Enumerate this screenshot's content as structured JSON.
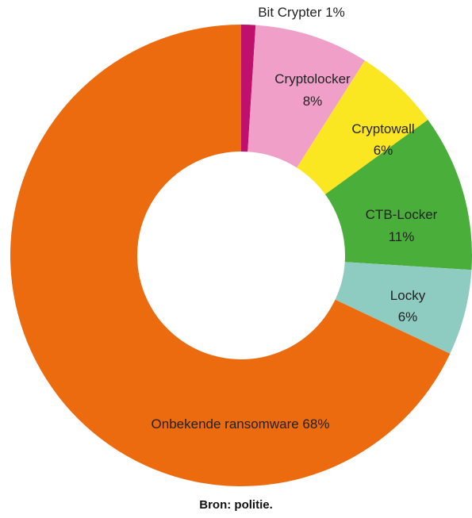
{
  "chart_data": {
    "type": "pie",
    "donut": true,
    "title": "",
    "slices": [
      {
        "label": "Bit Crypter",
        "value": 1,
        "display": "Bit Crypter 1%",
        "color": "#c0106e"
      },
      {
        "label": "Cryptolocker",
        "value": 8,
        "display": "8%",
        "color": "#f0a0c8"
      },
      {
        "label": "Cryptowall",
        "value": 6,
        "display": "6%",
        "color": "#fbe622"
      },
      {
        "label": "CTB-Locker",
        "value": 11,
        "display": "11%",
        "color": "#4aae3a"
      },
      {
        "label": "Locky",
        "value": 6,
        "display": "6%",
        "color": "#8ecbc0"
      },
      {
        "label": "Onbekende ransomware",
        "value": 68,
        "display": "Onbekende ransomware 68%",
        "color": "#ed6b0f"
      }
    ]
  },
  "source_text": "Bron: politie."
}
